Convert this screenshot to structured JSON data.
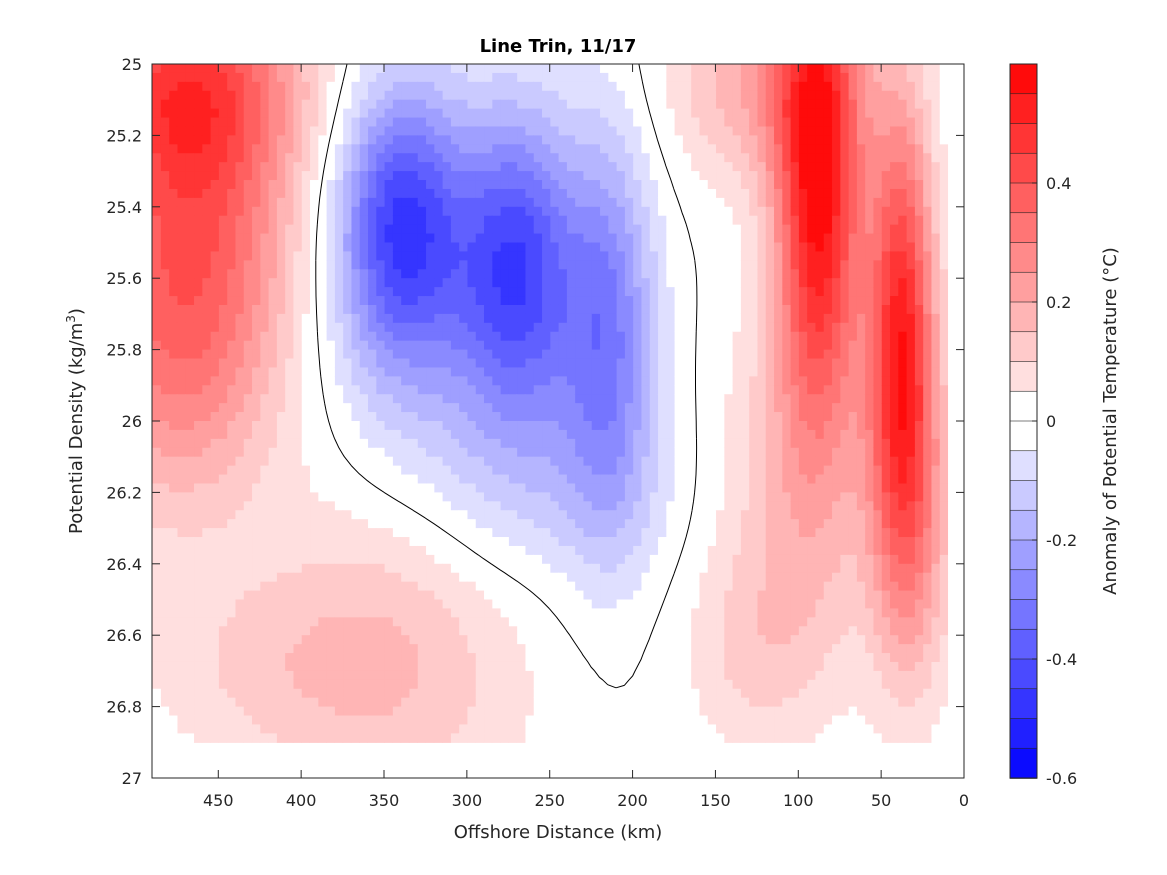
{
  "chart_data": {
    "type": "heatmap",
    "subtype": "filled-contour",
    "title": "Line Trin, 11/17",
    "xlabel": "Offshore Distance (km)",
    "ylabel_main": "Potential Density (kg/m",
    "ylabel_sup": "3",
    "ylabel_tail": ")",
    "xlim": [
      490,
      0
    ],
    "x_reversed": true,
    "ylim": [
      25,
      27
    ],
    "y_reversed": true,
    "x_ticks": [
      450,
      400,
      350,
      300,
      250,
      200,
      150,
      100,
      50,
      0
    ],
    "y_ticks": [
      "25",
      "25.2",
      "25.4",
      "25.6",
      "25.8",
      "26",
      "26.2",
      "26.4",
      "26.6",
      "26.8",
      "27"
    ],
    "colorbar": {
      "label": "Anomaly of Potential Temperature (°C)",
      "range": [
        -0.6,
        0.6
      ],
      "step": 0.05,
      "tick_values": [
        0.4,
        0.2,
        0,
        -0.2,
        -0.4,
        -0.6
      ],
      "tick_labels": [
        "0.4",
        "0.2",
        "0",
        "-0.2",
        "-0.4",
        "-0.6"
      ],
      "colormap": "blue-white-red",
      "neg_color": "#0000ff",
      "pos_color": "#ff0000",
      "neutral_color": "#ffffff"
    },
    "data_extent": {
      "x": [
        10,
        490
      ],
      "y": [
        25,
        26.9
      ]
    },
    "features": [
      {
        "x": 465,
        "y": 25.45,
        "sx": 45,
        "sy": 0.38,
        "amp": 0.35
      },
      {
        "x": 470,
        "y": 25.05,
        "sx": 50,
        "sy": 0.2,
        "amp": 0.3
      },
      {
        "x": 480,
        "y": 25.9,
        "sx": 40,
        "sy": 0.3,
        "amp": 0.15
      },
      {
        "x": 340,
        "y": 25.45,
        "sx": 28,
        "sy": 0.28,
        "amp": -0.44
      },
      {
        "x": 270,
        "y": 25.55,
        "sx": 25,
        "sy": 0.3,
        "amp": -0.38
      },
      {
        "x": 300,
        "y": 25.9,
        "sx": 60,
        "sy": 0.35,
        "amp": -0.12
      },
      {
        "x": 250,
        "y": 26.2,
        "sx": 60,
        "sy": 0.2,
        "amp": -0.07
      },
      {
        "x": 215,
        "y": 25.75,
        "sx": 20,
        "sy": 0.4,
        "amp": -0.27
      },
      {
        "x": 88,
        "y": 25.35,
        "sx": 18,
        "sy": 0.45,
        "amp": 0.55
      },
      {
        "x": 38,
        "y": 25.75,
        "sx": 14,
        "sy": 0.45,
        "amp": 0.48
      },
      {
        "x": 100,
        "y": 26.2,
        "sx": 35,
        "sy": 0.4,
        "amp": 0.15
      },
      {
        "x": 30,
        "y": 26.3,
        "sx": 18,
        "sy": 0.35,
        "amp": 0.18
      },
      {
        "x": 120,
        "y": 25.05,
        "sx": 40,
        "sy": 0.2,
        "amp": 0.2
      },
      {
        "x": 340,
        "y": 26.6,
        "sx": 60,
        "sy": 0.4,
        "amp": 0.14
      },
      {
        "x": 420,
        "y": 26.7,
        "sx": 60,
        "sy": 0.2,
        "amp": 0.08
      },
      {
        "x": 130,
        "y": 26.65,
        "sx": 30,
        "sy": 0.2,
        "amp": 0.08
      }
    ],
    "contour_level": 0
  }
}
